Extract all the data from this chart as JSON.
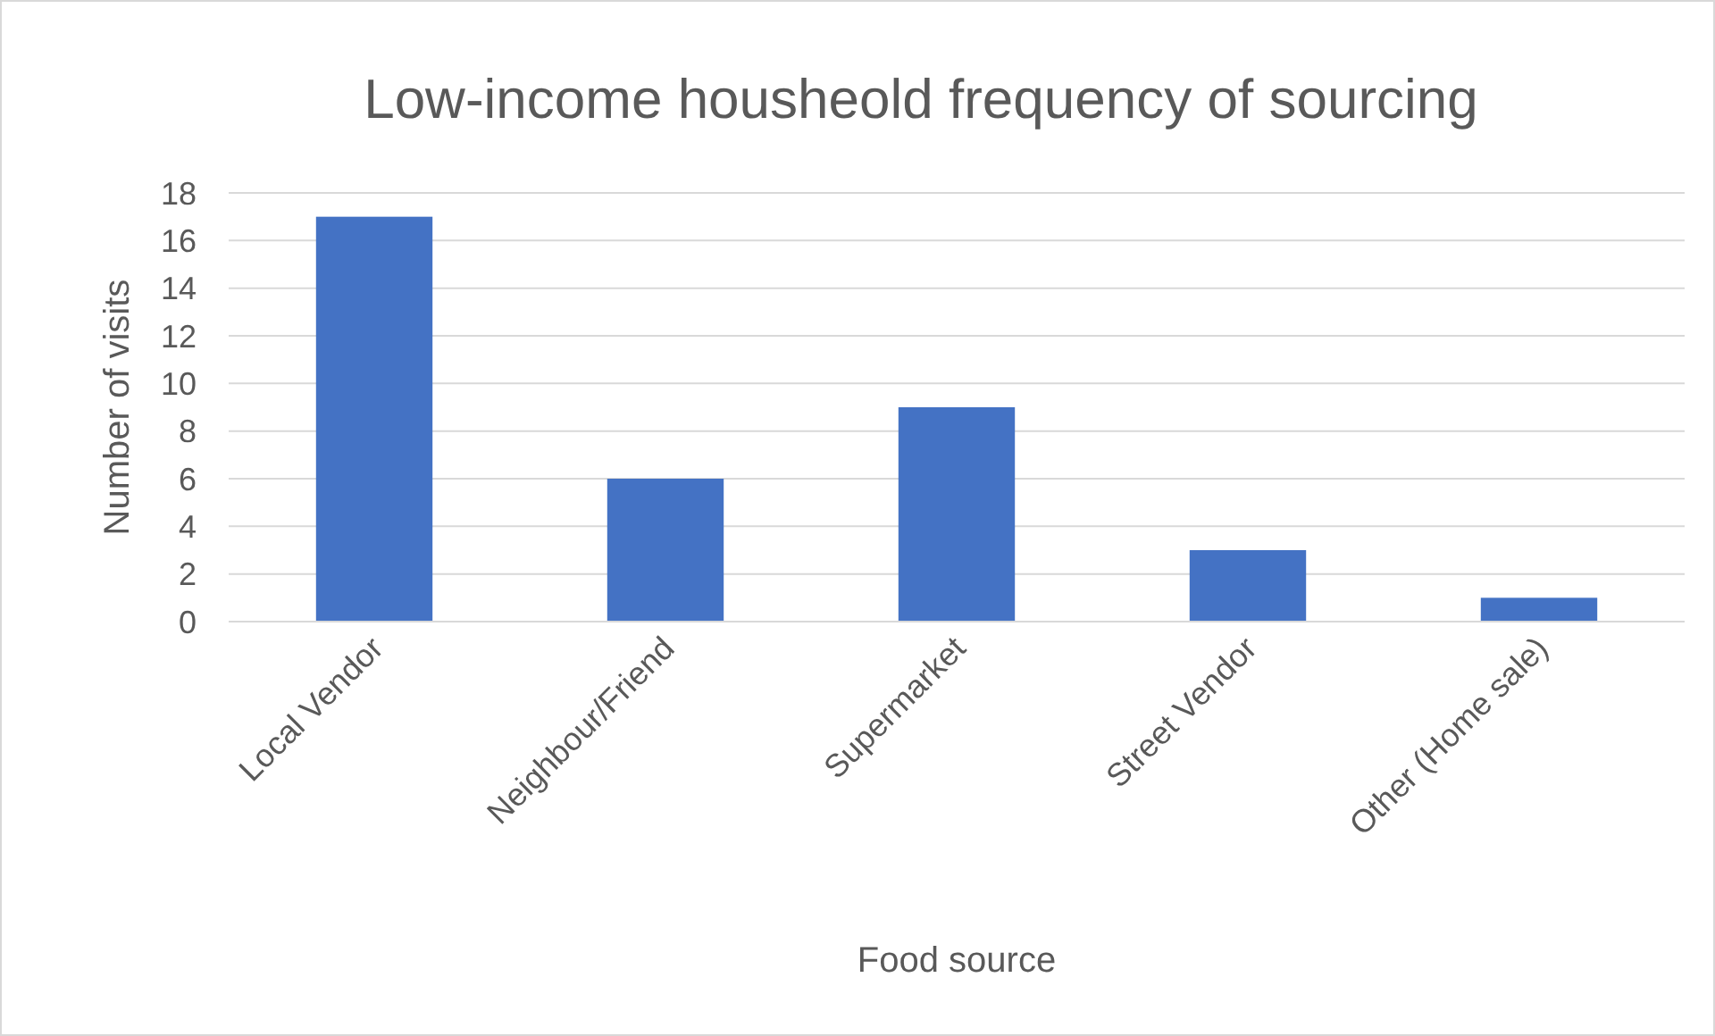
{
  "chart_data": {
    "type": "bar",
    "title": "Low-income housheold frequency of sourcing",
    "xlabel": "Food source",
    "ylabel": "Number of visits",
    "categories": [
      "Local Vendor",
      "Neighbour/Friend",
      "Supermarket",
      "Street Vendor",
      "Other (Home sale)"
    ],
    "values": [
      17,
      6,
      9,
      3,
      1
    ],
    "color": "#4472c4",
    "ylim": [
      0,
      18
    ],
    "yticks": [
      0,
      2,
      4,
      6,
      8,
      10,
      12,
      14,
      16,
      18
    ],
    "grid": "y"
  }
}
